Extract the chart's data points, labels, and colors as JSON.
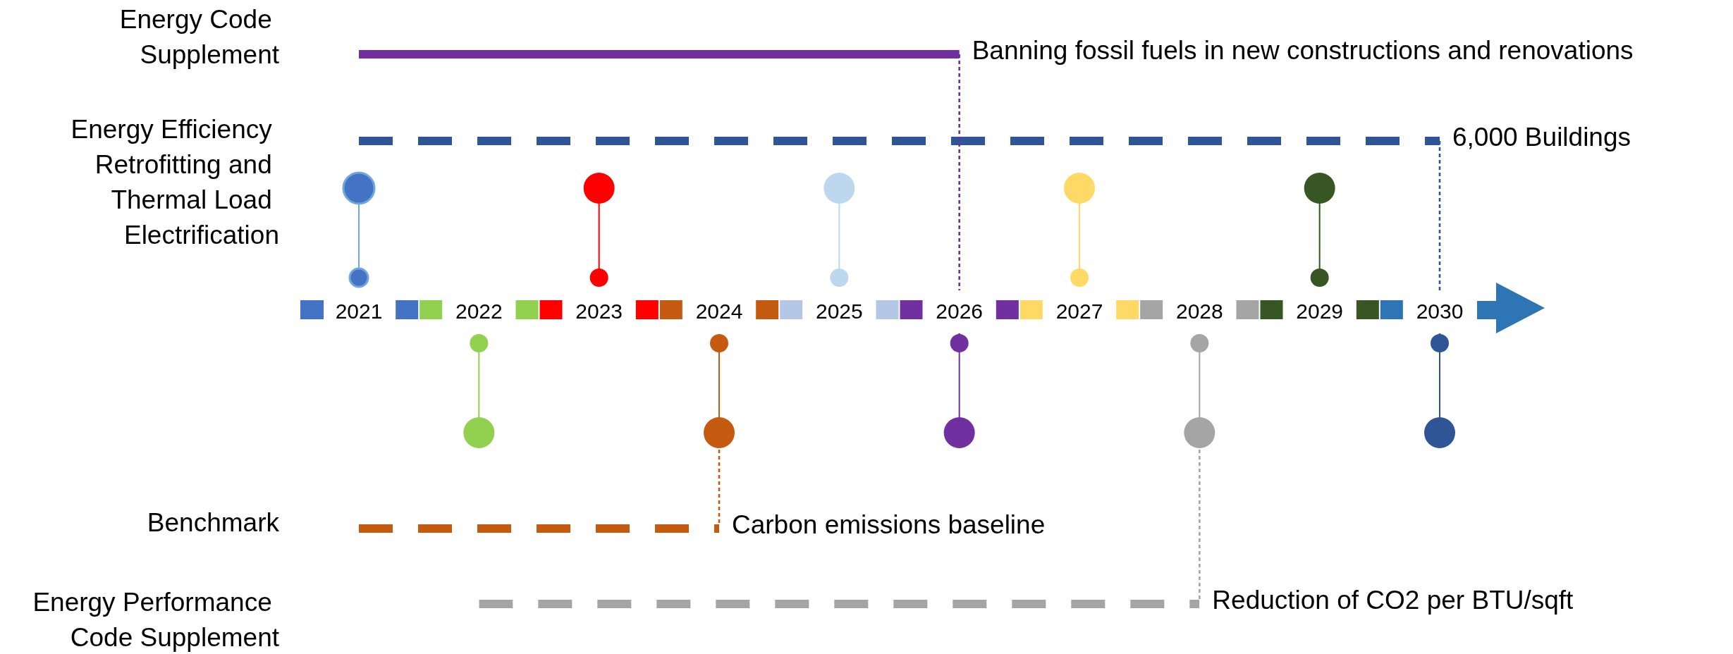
{
  "chart_data": [
    {
      "type": "bar",
      "orientation": "horizontal",
      "categories": [
        "Energy Code Supplement"
      ],
      "base": [
        2021
      ],
      "values": [
        5
      ],
      "color": "#7030a0",
      "xlim": [
        2021,
        2030
      ],
      "xticks": [
        2021,
        2022,
        2023,
        2024,
        2025,
        2026,
        2027,
        2028,
        2029,
        2030
      ],
      "tick_labels": "y",
      "ref_lines": [
        {
          "axis": "x",
          "value": 2026,
          "color": "#7030a0",
          "line_style": "dotted"
        }
      ],
      "annotations": [
        "Banning fossil fuels in new constructions and renovations"
      ]
    },
    {
      "type": "bar",
      "orientation": "horizontal",
      "categories": [
        "Energy Efficiency Retrofitting and Thermal Load Electrification"
      ],
      "base": [
        2021
      ],
      "values": [
        9
      ],
      "color": "#2f5597",
      "line_style": "dashed",
      "xlim": [
        2021,
        2030
      ],
      "xticks": [
        2021,
        2022,
        2023,
        2024,
        2025,
        2026,
        2027,
        2028,
        2029,
        2030
      ],
      "ref_lines": [
        {
          "axis": "x",
          "value": 2030,
          "color": "#2f5597",
          "line_style": "dotted"
        }
      ],
      "annotations": [
        "6,000 Buildings"
      ]
    },
    {
      "type": "bar",
      "orientation": "horizontal",
      "categories": [
        "Benchmark"
      ],
      "base": [
        2021
      ],
      "values": [
        3
      ],
      "color": "#c55a11",
      "line_style": "dashed",
      "xlim": [
        2021,
        2030
      ],
      "xticks": [
        2021,
        2022,
        2023,
        2024,
        2025,
        2026,
        2027,
        2028,
        2029,
        2030
      ],
      "tick_labels": "y",
      "ref_lines": [
        {
          "axis": "x",
          "value": 2024,
          "color": "#c55a11",
          "line_style": "dotted"
        }
      ],
      "annotations": [
        "Carbon emissions baseline"
      ]
    },
    {
      "type": "bar",
      "orientation": "horizontal",
      "categories": [
        "Energy Performance Code Supplement"
      ],
      "base": [
        2022
      ],
      "values": [
        6
      ],
      "color": "#a5a5a5",
      "line_style": "dashed",
      "xlim": [
        2021,
        2030
      ],
      "xticks": [
        2021,
        2022,
        2023,
        2024,
        2025,
        2026,
        2027,
        2028,
        2029,
        2030
      ],
      "tick_labels": "y",
      "annotations": [
        "Reduction of CO2 per BTU/sqft"
      ]
    }
  ]
}
